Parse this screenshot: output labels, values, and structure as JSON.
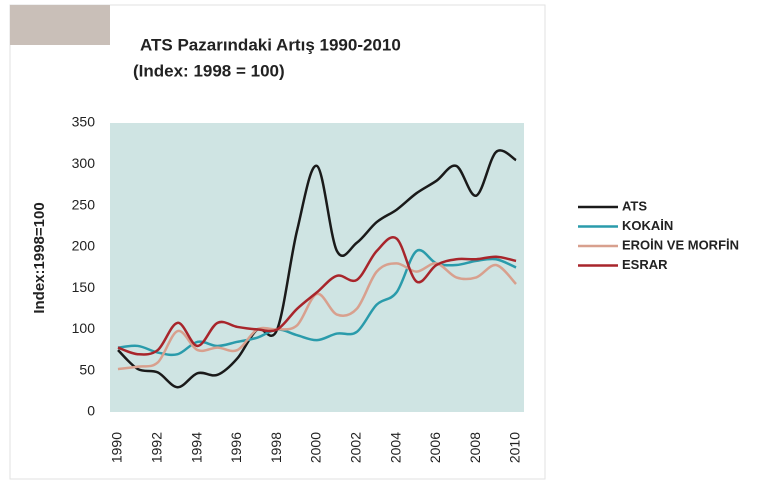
{
  "chart_data": {
    "type": "line",
    "title": "ATS Pazarındaki Artış 1990-2010",
    "subtitle": "(Index: 1998 = 100)",
    "y_label": "Index:1998=100",
    "x": [
      1990,
      1991,
      1992,
      1993,
      1994,
      1995,
      1996,
      1997,
      1998,
      1999,
      2000,
      2001,
      2002,
      2003,
      2004,
      2005,
      2006,
      2007,
      2008,
      2009,
      2010
    ],
    "series": [
      {
        "name": "ATS",
        "color": "#1a1a1a",
        "values": [
          75,
          52,
          48,
          30,
          47,
          45,
          65,
          100,
          100,
          220,
          298,
          195,
          205,
          230,
          245,
          265,
          280,
          298,
          262,
          315,
          305
        ]
      },
      {
        "name": "KOKAİN",
        "color": "#2a9bab",
        "values": [
          78,
          80,
          72,
          70,
          85,
          80,
          85,
          90,
          100,
          93,
          87,
          95,
          97,
          130,
          145,
          195,
          180,
          178,
          183,
          185,
          175
        ]
      },
      {
        "name": "EROİN VE MORFİN",
        "color": "#d8a08e",
        "values": [
          52,
          55,
          60,
          98,
          75,
          78,
          75,
          100,
          100,
          105,
          143,
          118,
          125,
          170,
          180,
          170,
          180,
          163,
          163,
          178,
          155
        ]
      },
      {
        "name": "ESRAR",
        "color": "#a8252b",
        "values": [
          78,
          70,
          75,
          108,
          80,
          108,
          103,
          100,
          100,
          125,
          145,
          165,
          160,
          195,
          210,
          158,
          178,
          185,
          185,
          188,
          183
        ]
      }
    ],
    "xlim": [
      1989.6,
      2010.4
    ],
    "xticks": [
      1990,
      1992,
      1994,
      1996,
      1998,
      2000,
      2002,
      2004,
      2006,
      2008,
      2010
    ],
    "ylim": [
      0,
      350
    ],
    "yticks": [
      0,
      50,
      100,
      150,
      200,
      250,
      300,
      350
    ],
    "grid": false,
    "legend": "right",
    "plot_background": "#cfe4e3"
  }
}
